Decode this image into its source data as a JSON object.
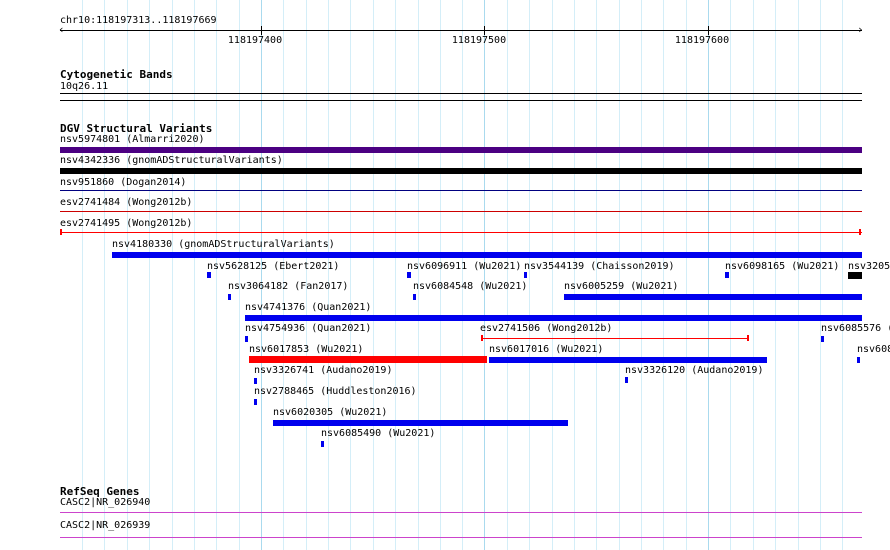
{
  "ruler": {
    "region": "chr10:118197313..118197669",
    "ticks": [
      "118197400",
      "118197500",
      "118197600"
    ]
  },
  "cytobands": {
    "title": "Cytogenetic Bands",
    "band": "10q26.11"
  },
  "dgv": {
    "title": "DGV Structural Variants",
    "features": [
      {
        "id": "f1",
        "label": "nsv5974801 (Almarri2020)",
        "color": "#4b0082"
      },
      {
        "id": "f2",
        "label": "nsv4342336 (gnomADStructuralVariants)",
        "color": "#000000"
      },
      {
        "id": "f3",
        "label": "nsv951860 (Dogan2014)",
        "color": "#000080"
      },
      {
        "id": "f4",
        "label": "esv2741484 (Wong2012b)",
        "color": "#cc0000"
      },
      {
        "id": "f5",
        "label": "esv2741495 (Wong2012b)",
        "color": "#ff0000"
      },
      {
        "id": "f6",
        "label": "nsv4180330 (gnomADStructuralVariants)",
        "color": "#0000ee"
      },
      {
        "id": "f7",
        "label": "nsv5628125 (Ebert2021)",
        "color": "#0000ee"
      },
      {
        "id": "f8",
        "label": "nsv6096911 (Wu2021)",
        "color": "#0000ee"
      },
      {
        "id": "f9",
        "label": "nsv3544139 (Chaisson2019)",
        "color": "#0000ee"
      },
      {
        "id": "f10",
        "label": "nsv6098165 (Wu2021)",
        "color": "#0000ee"
      },
      {
        "id": "f11",
        "label": "nsv3205",
        "color": "#000000"
      },
      {
        "id": "f12",
        "label": "nsv3064182 (Fan2017)",
        "color": "#0000ee"
      },
      {
        "id": "f13",
        "label": "nsv6084548 (Wu2021)",
        "color": "#0000ee"
      },
      {
        "id": "f14",
        "label": "nsv6005259 (Wu2021)",
        "color": "#0000ee"
      },
      {
        "id": "f15",
        "label": "nsv4741376 (Quan2021)",
        "color": "#0000ee"
      },
      {
        "id": "f16",
        "label": "nsv4754936 (Quan2021)",
        "color": "#0000ee"
      },
      {
        "id": "f17",
        "label": "esv2741506 (Wong2012b)",
        "color": "#ff0000"
      },
      {
        "id": "f18",
        "label": "nsv6085576 (",
        "color": "#0000ee"
      },
      {
        "id": "f19",
        "label": "nsv6017853 (Wu2021)",
        "color": "#ff0000"
      },
      {
        "id": "f20",
        "label": "nsv6017016 (Wu2021)",
        "color": "#0000ee"
      },
      {
        "id": "f21",
        "label": "nsv608",
        "color": "#0000ee"
      },
      {
        "id": "f22",
        "label": "nsv3326741 (Audano2019)",
        "color": "#0000ee"
      },
      {
        "id": "f23",
        "label": "nsv3326120 (Audano2019)",
        "color": "#0000ee"
      },
      {
        "id": "f24",
        "label": "nsv2788465 (Huddleston2016)",
        "color": "#0000ee"
      },
      {
        "id": "f25",
        "label": "nsv6020305 (Wu2021)",
        "color": "#0000ee"
      },
      {
        "id": "f26",
        "label": "nsv6085490 (Wu2021)",
        "color": "#0000ee"
      }
    ]
  },
  "refseq": {
    "title": "RefSeq Genes",
    "genes": [
      {
        "label": "CASC2|NR_026940",
        "color": "#cc44cc"
      },
      {
        "label": "CASC2|NR_026939",
        "color": "#cc44cc"
      }
    ]
  }
}
